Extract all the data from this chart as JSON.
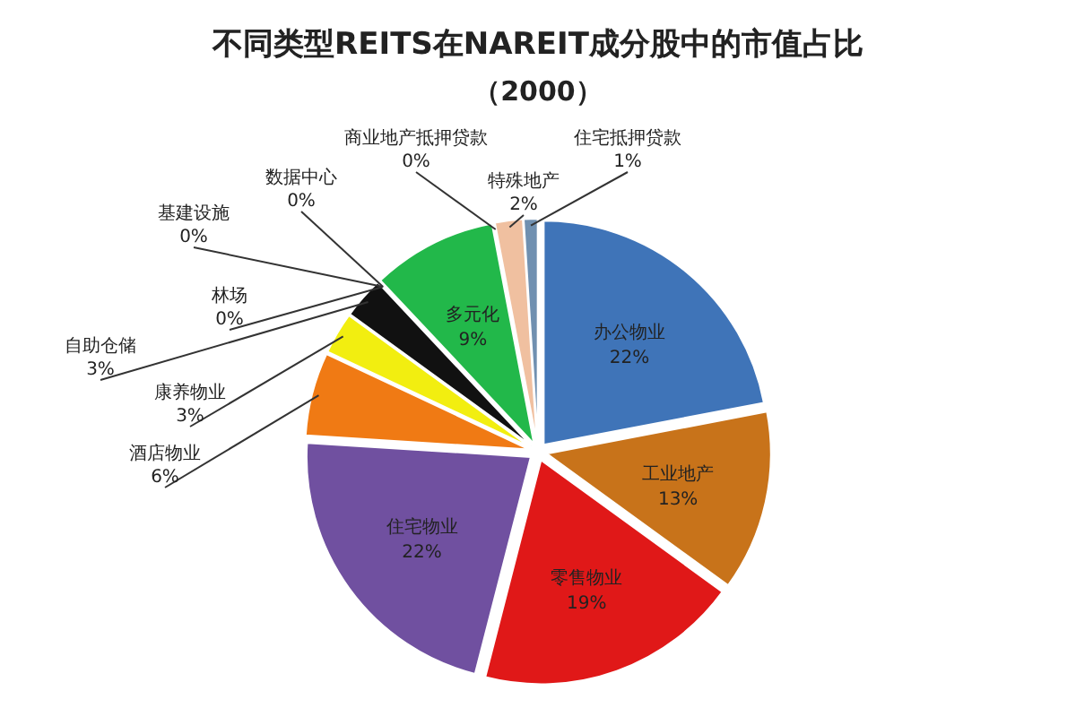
{
  "chart_data": {
    "type": "pie",
    "title": "不同类型REITS在NAREIT成分股中的市值占比",
    "subtitle": "（2000）",
    "categories": [
      "办公物业",
      "工业地产",
      "零售物业",
      "住宅物业",
      "酒店物业",
      "康养物业",
      "自助仓储",
      "林场",
      "基建设施",
      "数据中心",
      "多元化",
      "商业地产抵押贷款",
      "特殊地产",
      "住宅抵押贷款"
    ],
    "values": [
      22,
      13,
      19,
      22,
      6,
      3,
      3,
      0,
      0,
      0,
      9,
      0,
      2,
      1
    ],
    "colors": [
      "#3f74b8",
      "#c8731a",
      "#e01818",
      "#7050a0",
      "#f07a14",
      "#f2ee10",
      "#111111",
      null,
      null,
      null,
      "#22b84a",
      null,
      "#f0c0a0",
      "#7090b0"
    ],
    "value_labels": [
      "22%",
      "13%",
      "19%",
      "22%",
      "6%",
      "3%",
      "3%",
      "0%",
      "0%",
      "0%",
      "9%",
      "0%",
      "2%",
      "1%"
    ]
  }
}
